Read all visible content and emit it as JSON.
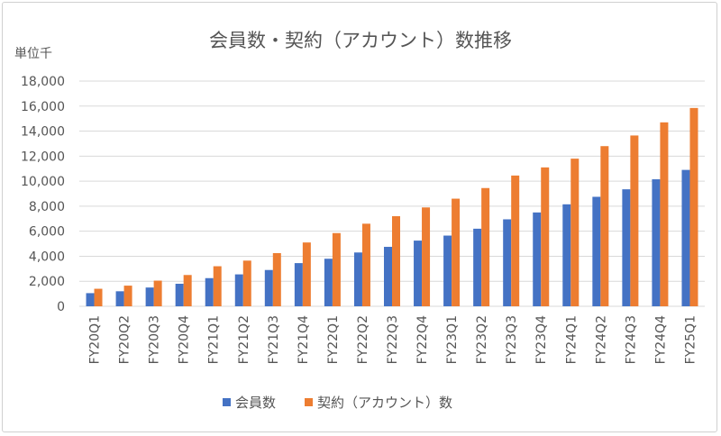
{
  "chart_data": {
    "type": "bar",
    "title": "会員数・契約（アカウント）数推移",
    "ylabel": "単位千",
    "xlabel": "",
    "ylim": [
      0,
      18000
    ],
    "yticks": [
      "0",
      "2,000",
      "4,000",
      "6,000",
      "8,000",
      "10,000",
      "12,000",
      "14,000",
      "16,000",
      "18,000"
    ],
    "ytick_values": [
      0,
      2000,
      4000,
      6000,
      8000,
      10000,
      12000,
      14000,
      16000,
      18000
    ],
    "grid": true,
    "legend_position": "bottom",
    "categories": [
      "FY20Q1",
      "FY20Q2",
      "FY20Q3",
      "FY20Q4",
      "FY21Q1",
      "FY21Q2",
      "FY21Q3",
      "FY21Q4",
      "FY22Q1",
      "FY22Q2",
      "FY22Q3",
      "FY22Q4",
      "FY23Q1",
      "FY23Q2",
      "FY23Q3",
      "FY23Q4",
      "FY24Q1",
      "FY24Q2",
      "FY24Q3",
      "FY24Q4",
      "FY25Q1"
    ],
    "series": [
      {
        "name": "会員数",
        "color": "#4472C4",
        "values": [
          1050,
          1200,
          1500,
          1800,
          2250,
          2550,
          2900,
          3450,
          3800,
          4300,
          4750,
          5250,
          5650,
          6200,
          6950,
          7500,
          8150,
          8750,
          9350,
          10150,
          10900
        ]
      },
      {
        "name": "契約（アカウント）数",
        "color": "#ED7D31",
        "values": [
          1400,
          1650,
          2050,
          2500,
          3200,
          3650,
          4250,
          5100,
          5850,
          6600,
          7200,
          7900,
          8600,
          9450,
          10450,
          11100,
          11800,
          12800,
          13650,
          14700,
          15850
        ]
      }
    ]
  }
}
